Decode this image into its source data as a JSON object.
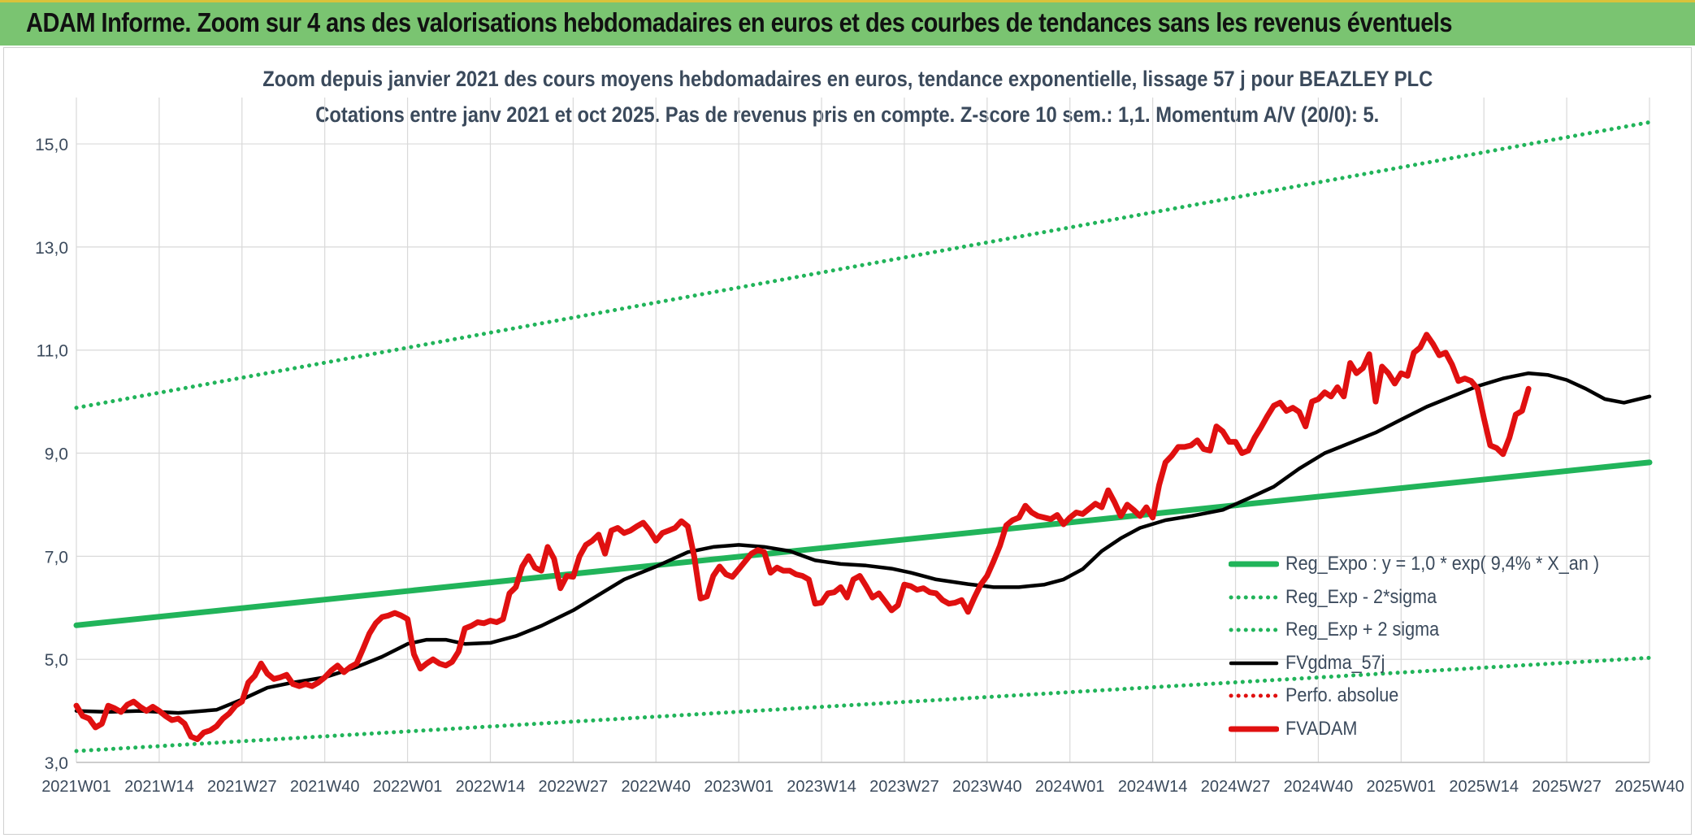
{
  "banner": {
    "title": "ADAM Informe. Zoom sur 4 ans des valorisations hebdomadaires en euros et des courbes de tendances sans les revenus éventuels"
  },
  "colors": {
    "banner_bg": "#7ac471",
    "reg_expo": "#21b45a",
    "reg_sigma": "#21b45a",
    "fvgdma": "#000000",
    "perfo": "#e01010",
    "fvadam": "#e01010",
    "grid": "#d9d9d9"
  },
  "chart_data": {
    "type": "line",
    "title": "Zoom depuis janvier 2021 des cours moyens hebdomadaires en euros, tendance exponentielle, lissage 57 j pour BEAZLEY PLC",
    "subtitle": "Cotations entre janv 2021 et oct 2025. Pas de revenus pris en compte. Z-score 10 sem.: 1,1. Momentum A/V (20/0): 5.",
    "xlabel": "",
    "ylabel": "",
    "ylim": [
      3.0,
      15.9
    ],
    "yticks": [
      "3,0",
      "5,0",
      "7,0",
      "9,0",
      "11,0",
      "13,0",
      "15,0"
    ],
    "ytick_values": [
      3,
      5,
      7,
      9,
      11,
      13,
      15
    ],
    "x_range_weeks": [
      0,
      247
    ],
    "xticks": [
      "2021W01",
      "2021W14",
      "2021W27",
      "2021W40",
      "2022W01",
      "2022W14",
      "2022W27",
      "2022W40",
      "2023W01",
      "2023W14",
      "2023W27",
      "2023W40",
      "2024W01",
      "2024W14",
      "2024W27",
      "2024W40",
      "2025W01",
      "2025W14",
      "2025W27",
      "2025W40"
    ],
    "xtick_values": [
      0,
      13,
      26,
      39,
      52,
      65,
      78,
      91,
      104,
      117,
      130,
      143,
      156,
      169,
      182,
      195,
      208,
      221,
      234,
      247
    ],
    "grid": true,
    "legend_position": "bottom-right",
    "series": [
      {
        "name": "Reg_Expo : y = 1,0 * exp( 9,4% *  X_an )",
        "style": "solid-thick",
        "color": "#21b45a",
        "points": [
          [
            0,
            5.66
          ],
          [
            247,
            8.82
          ]
        ]
      },
      {
        "name": "Reg_Exp - 2*sigma",
        "style": "dotted",
        "color": "#21b45a",
        "points": [
          [
            0,
            3.22
          ],
          [
            247,
            5.03
          ]
        ]
      },
      {
        "name": "Reg_Exp + 2 sigma",
        "style": "dotted",
        "color": "#21b45a",
        "points": [
          [
            0,
            9.88
          ],
          [
            247,
            15.42
          ]
        ]
      },
      {
        "name": "FVgdma_57j",
        "style": "solid",
        "color": "#000000",
        "points": [
          [
            0,
            4.0
          ],
          [
            5,
            3.98
          ],
          [
            10,
            4.0
          ],
          [
            16,
            3.96
          ],
          [
            22,
            4.02
          ],
          [
            26,
            4.22
          ],
          [
            30,
            4.45
          ],
          [
            34,
            4.55
          ],
          [
            39,
            4.65
          ],
          [
            44,
            4.85
          ],
          [
            48,
            5.05
          ],
          [
            52,
            5.3
          ],
          [
            55,
            5.38
          ],
          [
            58,
            5.38
          ],
          [
            61,
            5.3
          ],
          [
            65,
            5.32
          ],
          [
            69,
            5.45
          ],
          [
            73,
            5.65
          ],
          [
            78,
            5.95
          ],
          [
            82,
            6.25
          ],
          [
            86,
            6.55
          ],
          [
            91,
            6.8
          ],
          [
            96,
            7.08
          ],
          [
            100,
            7.18
          ],
          [
            104,
            7.22
          ],
          [
            108,
            7.18
          ],
          [
            112,
            7.1
          ],
          [
            116,
            6.92
          ],
          [
            120,
            6.85
          ],
          [
            124,
            6.82
          ],
          [
            128,
            6.76
          ],
          [
            131,
            6.68
          ],
          [
            135,
            6.55
          ],
          [
            140,
            6.46
          ],
          [
            144,
            6.4
          ],
          [
            148,
            6.4
          ],
          [
            152,
            6.45
          ],
          [
            155,
            6.55
          ],
          [
            158,
            6.75
          ],
          [
            161,
            7.1
          ],
          [
            164,
            7.35
          ],
          [
            167,
            7.55
          ],
          [
            171,
            7.7
          ],
          [
            175,
            7.78
          ],
          [
            180,
            7.9
          ],
          [
            184,
            8.12
          ],
          [
            188,
            8.35
          ],
          [
            192,
            8.7
          ],
          [
            196,
            9.0
          ],
          [
            200,
            9.2
          ],
          [
            204,
            9.4
          ],
          [
            208,
            9.65
          ],
          [
            212,
            9.9
          ],
          [
            216,
            10.1
          ],
          [
            220,
            10.3
          ],
          [
            224,
            10.45
          ],
          [
            228,
            10.55
          ],
          [
            231,
            10.52
          ],
          [
            234,
            10.42
          ],
          [
            237,
            10.25
          ],
          [
            240,
            10.05
          ],
          [
            243,
            9.98
          ],
          [
            247,
            10.1
          ]
        ]
      },
      {
        "name": "Perfo. absolue",
        "style": "dotted",
        "color": "#e01010",
        "points": []
      },
      {
        "name": "FVADAM",
        "style": "solid-thick",
        "color": "#e01010",
        "points": [
          [
            0,
            4.1
          ],
          [
            1,
            3.9
          ],
          [
            2,
            3.85
          ],
          [
            3,
            3.68
          ],
          [
            4,
            3.75
          ],
          [
            5,
            4.1
          ],
          [
            6,
            4.05
          ],
          [
            7,
            3.98
          ],
          [
            8,
            4.12
          ],
          [
            9,
            4.18
          ],
          [
            10,
            4.08
          ],
          [
            11,
            4.0
          ],
          [
            12,
            4.08
          ],
          [
            13,
            4.0
          ],
          [
            14,
            3.9
          ],
          [
            15,
            3.82
          ],
          [
            16,
            3.85
          ],
          [
            17,
            3.75
          ],
          [
            18,
            3.5
          ],
          [
            19,
            3.45
          ],
          [
            20,
            3.58
          ],
          [
            21,
            3.62
          ],
          [
            22,
            3.7
          ],
          [
            23,
            3.85
          ],
          [
            24,
            3.95
          ],
          [
            25,
            4.1
          ],
          [
            26,
            4.18
          ],
          [
            27,
            4.55
          ],
          [
            28,
            4.68
          ],
          [
            29,
            4.92
          ],
          [
            30,
            4.72
          ],
          [
            31,
            4.62
          ],
          [
            32,
            4.65
          ],
          [
            33,
            4.7
          ],
          [
            34,
            4.52
          ],
          [
            35,
            4.48
          ],
          [
            36,
            4.52
          ],
          [
            37,
            4.48
          ],
          [
            38,
            4.55
          ],
          [
            39,
            4.65
          ],
          [
            40,
            4.78
          ],
          [
            41,
            4.88
          ],
          [
            42,
            4.75
          ],
          [
            43,
            4.85
          ],
          [
            44,
            4.92
          ],
          [
            45,
            5.2
          ],
          [
            46,
            5.5
          ],
          [
            47,
            5.7
          ],
          [
            48,
            5.82
          ],
          [
            49,
            5.85
          ],
          [
            50,
            5.9
          ],
          [
            51,
            5.85
          ],
          [
            52,
            5.78
          ],
          [
            53,
            5.1
          ],
          [
            54,
            4.82
          ],
          [
            55,
            4.92
          ],
          [
            56,
            5.0
          ],
          [
            57,
            4.92
          ],
          [
            58,
            4.88
          ],
          [
            59,
            4.95
          ],
          [
            60,
            5.15
          ],
          [
            61,
            5.6
          ],
          [
            62,
            5.65
          ],
          [
            63,
            5.72
          ],
          [
            64,
            5.7
          ],
          [
            65,
            5.75
          ],
          [
            66,
            5.72
          ],
          [
            67,
            5.78
          ],
          [
            68,
            6.28
          ],
          [
            69,
            6.4
          ],
          [
            70,
            6.8
          ],
          [
            71,
            7.0
          ],
          [
            72,
            6.78
          ],
          [
            73,
            6.72
          ],
          [
            74,
            7.18
          ],
          [
            75,
            6.95
          ],
          [
            76,
            6.38
          ],
          [
            77,
            6.62
          ],
          [
            78,
            6.6
          ],
          [
            79,
            7.0
          ],
          [
            80,
            7.22
          ],
          [
            81,
            7.3
          ],
          [
            82,
            7.42
          ],
          [
            83,
            7.05
          ],
          [
            84,
            7.5
          ],
          [
            85,
            7.55
          ],
          [
            86,
            7.45
          ],
          [
            87,
            7.5
          ],
          [
            88,
            7.58
          ],
          [
            89,
            7.65
          ],
          [
            90,
            7.5
          ],
          [
            91,
            7.3
          ],
          [
            92,
            7.45
          ],
          [
            93,
            7.5
          ],
          [
            94,
            7.55
          ],
          [
            95,
            7.68
          ],
          [
            96,
            7.58
          ],
          [
            97,
            7.0
          ],
          [
            98,
            6.18
          ],
          [
            99,
            6.22
          ],
          [
            100,
            6.62
          ],
          [
            101,
            6.8
          ],
          [
            102,
            6.65
          ],
          [
            103,
            6.6
          ],
          [
            104,
            6.75
          ],
          [
            105,
            6.9
          ],
          [
            106,
            7.05
          ],
          [
            107,
            7.12
          ],
          [
            108,
            7.08
          ],
          [
            109,
            6.68
          ],
          [
            110,
            6.78
          ],
          [
            111,
            6.72
          ],
          [
            112,
            6.72
          ],
          [
            113,
            6.65
          ],
          [
            114,
            6.62
          ],
          [
            115,
            6.55
          ],
          [
            116,
            6.08
          ],
          [
            117,
            6.1
          ],
          [
            118,
            6.28
          ],
          [
            119,
            6.3
          ],
          [
            120,
            6.4
          ],
          [
            121,
            6.2
          ],
          [
            122,
            6.55
          ],
          [
            123,
            6.62
          ],
          [
            124,
            6.42
          ],
          [
            125,
            6.2
          ],
          [
            126,
            6.28
          ],
          [
            127,
            6.12
          ],
          [
            128,
            5.95
          ],
          [
            129,
            6.05
          ],
          [
            130,
            6.45
          ],
          [
            131,
            6.42
          ],
          [
            132,
            6.35
          ],
          [
            133,
            6.38
          ],
          [
            134,
            6.3
          ],
          [
            135,
            6.28
          ],
          [
            136,
            6.15
          ],
          [
            137,
            6.08
          ],
          [
            138,
            6.1
          ],
          [
            139,
            6.15
          ],
          [
            140,
            5.92
          ],
          [
            141,
            6.2
          ],
          [
            142,
            6.45
          ],
          [
            143,
            6.62
          ],
          [
            144,
            6.9
          ],
          [
            145,
            7.2
          ],
          [
            146,
            7.6
          ],
          [
            147,
            7.7
          ],
          [
            148,
            7.75
          ],
          [
            149,
            7.98
          ],
          [
            150,
            7.85
          ],
          [
            151,
            7.78
          ],
          [
            152,
            7.75
          ],
          [
            153,
            7.72
          ],
          [
            154,
            7.8
          ],
          [
            155,
            7.62
          ],
          [
            156,
            7.75
          ],
          [
            157,
            7.85
          ],
          [
            158,
            7.82
          ],
          [
            159,
            7.92
          ],
          [
            160,
            8.02
          ],
          [
            161,
            7.95
          ],
          [
            162,
            8.28
          ],
          [
            163,
            8.05
          ],
          [
            164,
            7.78
          ],
          [
            165,
            8.0
          ],
          [
            166,
            7.9
          ],
          [
            167,
            7.78
          ],
          [
            168,
            7.95
          ],
          [
            169,
            7.75
          ],
          [
            170,
            8.38
          ],
          [
            171,
            8.82
          ],
          [
            172,
            8.95
          ],
          [
            173,
            9.12
          ],
          [
            174,
            9.12
          ],
          [
            175,
            9.15
          ],
          [
            176,
            9.25
          ],
          [
            177,
            9.08
          ],
          [
            178,
            9.05
          ],
          [
            179,
            9.52
          ],
          [
            180,
            9.42
          ],
          [
            181,
            9.22
          ],
          [
            182,
            9.22
          ],
          [
            183,
            9.0
          ],
          [
            184,
            9.05
          ],
          [
            185,
            9.3
          ],
          [
            186,
            9.5
          ],
          [
            187,
            9.72
          ],
          [
            188,
            9.92
          ],
          [
            189,
            9.98
          ],
          [
            190,
            9.82
          ],
          [
            191,
            9.88
          ],
          [
            192,
            9.8
          ],
          [
            193,
            9.52
          ],
          [
            194,
            10.0
          ],
          [
            195,
            10.05
          ],
          [
            196,
            10.18
          ],
          [
            197,
            10.1
          ],
          [
            198,
            10.28
          ],
          [
            199,
            10.1
          ],
          [
            200,
            10.75
          ],
          [
            201,
            10.55
          ],
          [
            202,
            10.65
          ],
          [
            203,
            10.92
          ],
          [
            204,
            10.0
          ],
          [
            205,
            10.68
          ],
          [
            206,
            10.55
          ],
          [
            207,
            10.35
          ],
          [
            208,
            10.55
          ],
          [
            209,
            10.5
          ],
          [
            210,
            10.95
          ],
          [
            211,
            11.05
          ],
          [
            212,
            11.3
          ],
          [
            213,
            11.12
          ],
          [
            214,
            10.9
          ],
          [
            215,
            10.95
          ],
          [
            216,
            10.72
          ],
          [
            217,
            10.4
          ],
          [
            218,
            10.45
          ],
          [
            219,
            10.4
          ],
          [
            220,
            10.25
          ],
          [
            221,
            9.68
          ],
          [
            222,
            9.15
          ],
          [
            223,
            9.1
          ],
          [
            224,
            8.98
          ],
          [
            225,
            9.3
          ],
          [
            226,
            9.75
          ],
          [
            227,
            9.82
          ],
          [
            228,
            10.25
          ]
        ]
      }
    ]
  }
}
